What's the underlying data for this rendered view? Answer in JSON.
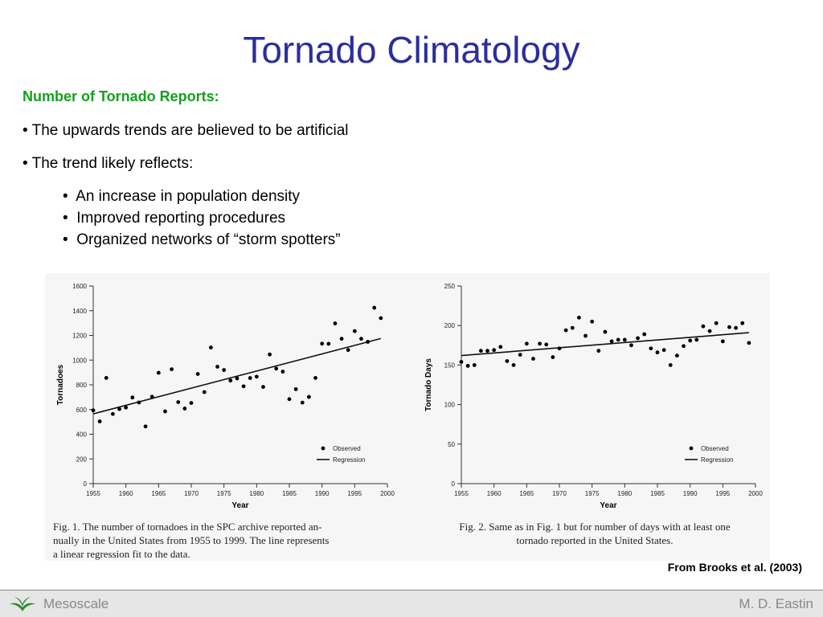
{
  "slide": {
    "title": "Tornado Climatology",
    "subhead": "Number of Tornado Reports:",
    "bullets": [
      "• The upwards trends are believed to be artificial",
      "• The trend likely reflects:"
    ],
    "sub_bullets": [
      "•  An increase in population density",
      "•  Improved reporting procedures",
      "•  Organized networks of “storm spotters”"
    ],
    "source": "From Brooks et al. (2003)"
  },
  "footer": {
    "left_label": "Mesoscale",
    "right_label": "M. D. Eastin",
    "logo_icon": "leaf-logo-icon",
    "logo_color": "#2e8b2e"
  },
  "captions": {
    "fig1": [
      "Fig. 1. The number of tornadoes in the SPC archive reported an-",
      "nually in the United States from 1955 to 1999. The line represents",
      "a linear regression fit to the data."
    ],
    "fig2": [
      "Fig. 2. Same as in Fig. 1 but for number of days with at least one",
      "tornado reported in the United States."
    ]
  },
  "chart_data": [
    {
      "type": "scatter",
      "title": "",
      "xlabel": "Year",
      "ylabel": "Tornadoes",
      "xlim": [
        1955,
        2000
      ],
      "ylim": [
        0,
        1600
      ],
      "xticks": [
        1955,
        1960,
        1965,
        1970,
        1975,
        1980,
        1985,
        1990,
        1995,
        2000
      ],
      "yticks": [
        0,
        200,
        400,
        600,
        800,
        1000,
        1200,
        1400,
        1600
      ],
      "legend": {
        "position": "lower-right",
        "entries": [
          "Observed",
          "Regression"
        ]
      },
      "series": [
        {
          "name": "Observed",
          "x": [
            1955,
            1956,
            1957,
            1958,
            1959,
            1960,
            1961,
            1962,
            1963,
            1964,
            1965,
            1966,
            1967,
            1968,
            1969,
            1970,
            1971,
            1972,
            1973,
            1974,
            1975,
            1976,
            1977,
            1978,
            1979,
            1980,
            1981,
            1982,
            1983,
            1984,
            1985,
            1986,
            1987,
            1988,
            1989,
            1990,
            1991,
            1992,
            1993,
            1994,
            1995,
            1996,
            1997,
            1998,
            1999
          ],
          "y": [
            593,
            504,
            856,
            564,
            604,
            616,
            697,
            657,
            463,
            704,
            897,
            585,
            926,
            660,
            608,
            653,
            888,
            741,
            1102,
            947,
            920,
            835,
            852,
            788,
            855,
            866,
            783,
            1046,
            931,
            907,
            684,
            765,
            656,
            702,
            856,
            1133,
            1132,
            1297,
            1173,
            1082,
            1235,
            1173,
            1148,
            1424,
            1340
          ]
        },
        {
          "name": "Regression",
          "x": [
            1955,
            1999
          ],
          "y": [
            565,
            1175
          ]
        }
      ]
    },
    {
      "type": "scatter",
      "title": "",
      "xlabel": "Year",
      "ylabel": "Tornado Days",
      "xlim": [
        1955,
        2000
      ],
      "ylim": [
        0,
        250
      ],
      "xticks": [
        1955,
        1960,
        1965,
        1970,
        1975,
        1980,
        1985,
        1990,
        1995,
        2000
      ],
      "yticks": [
        0,
        50,
        100,
        150,
        200,
        250
      ],
      "legend": {
        "position": "lower-right",
        "entries": [
          "Observed",
          "Regression"
        ]
      },
      "series": [
        {
          "name": "Observed",
          "x": [
            1955,
            1956,
            1957,
            1958,
            1959,
            1960,
            1961,
            1962,
            1963,
            1964,
            1965,
            1966,
            1967,
            1968,
            1969,
            1970,
            1971,
            1972,
            1973,
            1974,
            1975,
            1976,
            1977,
            1978,
            1979,
            1980,
            1981,
            1982,
            1983,
            1984,
            1985,
            1986,
            1987,
            1988,
            1989,
            1990,
            1991,
            1992,
            1993,
            1994,
            1995,
            1996,
            1997,
            1998,
            1999
          ],
          "y": [
            154,
            149,
            150,
            168,
            168,
            169,
            173,
            155,
            150,
            163,
            177,
            158,
            177,
            176,
            160,
            171,
            194,
            197,
            210,
            187,
            205,
            168,
            192,
            180,
            182,
            182,
            175,
            184,
            189,
            171,
            166,
            169,
            150,
            162,
            174,
            181,
            182,
            199,
            193,
            203,
            180,
            198,
            197,
            203,
            178
          ]
        },
        {
          "name": "Regression",
          "x": [
            1955,
            1999
          ],
          "y": [
            162,
            191
          ]
        }
      ]
    }
  ]
}
